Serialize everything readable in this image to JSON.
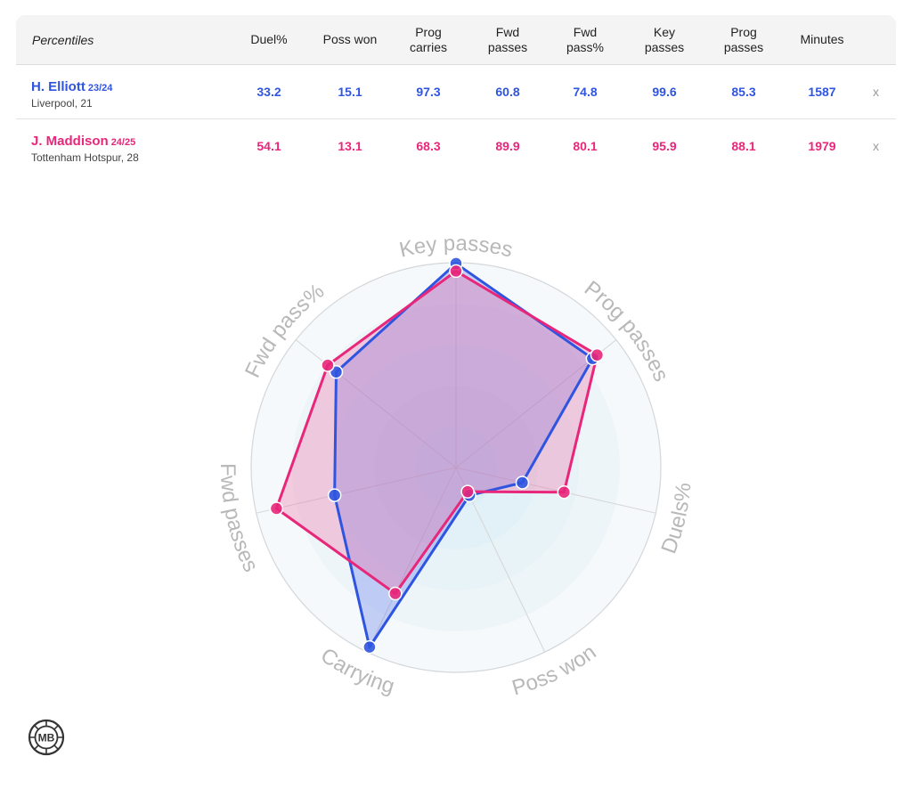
{
  "table": {
    "header_label": "Percentiles",
    "columns": [
      "Duel%",
      "Poss won",
      "Prog\ncarries",
      "Fwd\npasses",
      "Fwd\npass%",
      "Key\npasses",
      "Prog\npasses",
      "Minutes"
    ],
    "remove_label": "x",
    "players": [
      {
        "name": "H. Elliott",
        "season": "23/24",
        "team": "Liverpool, 21",
        "values": [
          "33.2",
          "15.1",
          "97.3",
          "60.8",
          "74.8",
          "99.6",
          "85.3",
          "1587"
        ],
        "color": "#2f55e0"
      },
      {
        "name": "J. Maddison",
        "season": "24/25",
        "team": "Tottenham Hotspur, 28",
        "values": [
          "54.1",
          "13.1",
          "68.3",
          "89.9",
          "80.1",
          "95.9",
          "88.1",
          "1979"
        ],
        "color": "#e8267a"
      }
    ]
  },
  "chart_data": {
    "type": "radar",
    "axes": [
      "Key passes",
      "Prog passes",
      "Duels%",
      "Poss won",
      "Carrying",
      "Fwd passes",
      "Fwd pass%"
    ],
    "range": [
      0,
      100
    ],
    "series": [
      {
        "values": [
          99.6,
          85.3,
          33.2,
          15.1,
          97.3,
          60.8,
          74.8
        ],
        "color": "#2f55e0",
        "fill": "#5b73e8"
      },
      {
        "values": [
          95.9,
          88.1,
          54.1,
          13.1,
          68.3,
          89.9,
          80.1
        ],
        "color": "#e8267a",
        "fill": "#ee6aa3"
      }
    ],
    "label_color": "#b8b8b8"
  },
  "logo": {
    "text": "MB"
  }
}
